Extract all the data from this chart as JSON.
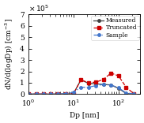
{
  "xlabel": "Dp [nm]",
  "ylabel": "dN/d(logDp) [cm$^{-3}$]",
  "xlim": [
    1.0,
    300.0
  ],
  "ylim": [
    0,
    700000.0
  ],
  "yticks": [
    0,
    100000.0,
    200000.0,
    300000.0,
    400000.0,
    500000.0,
    600000.0,
    700000.0
  ],
  "ytick_labels": [
    "0",
    "1",
    "2",
    "3",
    "4",
    "5",
    "6",
    "7"
  ],
  "xtick_positions": [
    1,
    10,
    100
  ],
  "xtick_labels": [
    "10$^0$",
    "10$^1$",
    "10$^2$"
  ],
  "measured_x": [
    1.0,
    1.5,
    2.2,
    3.2,
    4.6,
    6.8,
    10.0,
    14.7,
    21.5,
    31.6,
    46.4,
    68.1,
    100.0,
    147.0,
    215.0
  ],
  "measured_y": [
    0,
    0,
    0,
    0,
    0,
    0,
    2000.0,
    125000.0,
    95000.0,
    90000.0,
    85000.0,
    80000.0,
    50000.0,
    5000.0,
    0.0
  ],
  "truncated_x": [
    1.0,
    1.5,
    2.2,
    3.2,
    4.6,
    6.8,
    10.0,
    14.7,
    21.5,
    31.6,
    46.4,
    68.1,
    100.0,
    147.0,
    215.0
  ],
  "truncated_y": [
    0,
    0,
    0,
    0,
    0,
    0,
    2000.0,
    125000.0,
    100000.0,
    105000.0,
    130000.0,
    185000.0,
    160000.0,
    60000.0,
    5000.0
  ],
  "sample_x": [
    1.0,
    1.5,
    2.2,
    3.2,
    4.6,
    6.8,
    10.0,
    14.7,
    21.5,
    31.6,
    46.4,
    68.1,
    100.0,
    147.0,
    215.0
  ],
  "sample_y": [
    0,
    0,
    0,
    0,
    0,
    5000.0,
    15000.0,
    60000.0,
    60000.0,
    75000.0,
    85000.0,
    80000.0,
    55000.0,
    10000.0,
    2000.0
  ],
  "measured_color": "#404040",
  "truncated_color": "#cc0000",
  "sample_color": "#4477cc",
  "measured_marker": "o",
  "truncated_marker": "s",
  "sample_marker": "o",
  "measured_linestyle": "-",
  "truncated_linestyle": "--",
  "sample_linestyle": "-.",
  "legend_labels": [
    "Measured",
    "Truncated",
    "Sample"
  ],
  "fontsize": 6.5,
  "marker_size": 2.5,
  "linewidth": 0.9
}
